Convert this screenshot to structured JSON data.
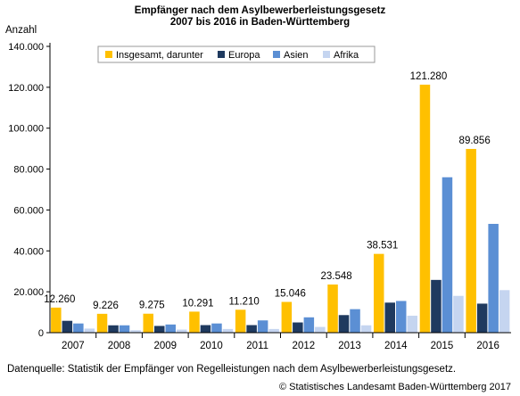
{
  "header": {
    "title_line1": "Empfänger nach dem Asylbewerberleistungsgesetz",
    "title_line2": "2007 bis 2016 in Baden-Württemberg"
  },
  "footer": {
    "source": "Datenquelle: Statistik der Empfänger von Regelleistungen nach dem Asylbewerberleistungsgesetz.",
    "copyright": "© Statistisches Landesamt Baden-Württemberg 2017"
  },
  "chart_data": {
    "type": "bar",
    "title": "Empfänger nach dem Asylbewerberleistungsgesetz 2007 bis 2016 in Baden-Württemberg",
    "ylabel": "Anzahl",
    "xlabel": "",
    "ylim": [
      0,
      140000
    ],
    "yticks": [
      0,
      20000,
      40000,
      60000,
      80000,
      100000,
      120000,
      140000
    ],
    "ytick_labels": [
      "0",
      "20.000",
      "40.000",
      "60.000",
      "80.000",
      "100.000",
      "120.000",
      "140.000"
    ],
    "grid": false,
    "legend_position": "top-center",
    "categories": [
      "2007",
      "2008",
      "2009",
      "2010",
      "2011",
      "2012",
      "2013",
      "2014",
      "2015",
      "2016"
    ],
    "series": [
      {
        "name": "Insgesamt, darunter",
        "color": "#FFC000",
        "values": [
          12260,
          9226,
          9275,
          10291,
          11210,
          15046,
          23548,
          38531,
          121280,
          89856
        ]
      },
      {
        "name": "Europa",
        "color": "#1F3A5F",
        "values": [
          5800,
          3600,
          3300,
          3700,
          3700,
          5000,
          8600,
          14700,
          25800,
          14200
        ]
      },
      {
        "name": "Asien",
        "color": "#5B8FD4",
        "values": [
          4500,
          3600,
          4000,
          4500,
          6000,
          7500,
          11500,
          15500,
          76000,
          53200
        ]
      },
      {
        "name": "Afrika",
        "color": "#C5D5F0",
        "values": [
          2000,
          1200,
          1500,
          1800,
          1800,
          2800,
          3600,
          8300,
          18000,
          20800
        ]
      }
    ],
    "data_labels": [
      "12.260",
      "9.226",
      "9.275",
      "10.291",
      "11.210",
      "15.046",
      "23.548",
      "38.531",
      "121.280",
      "89.856"
    ]
  }
}
